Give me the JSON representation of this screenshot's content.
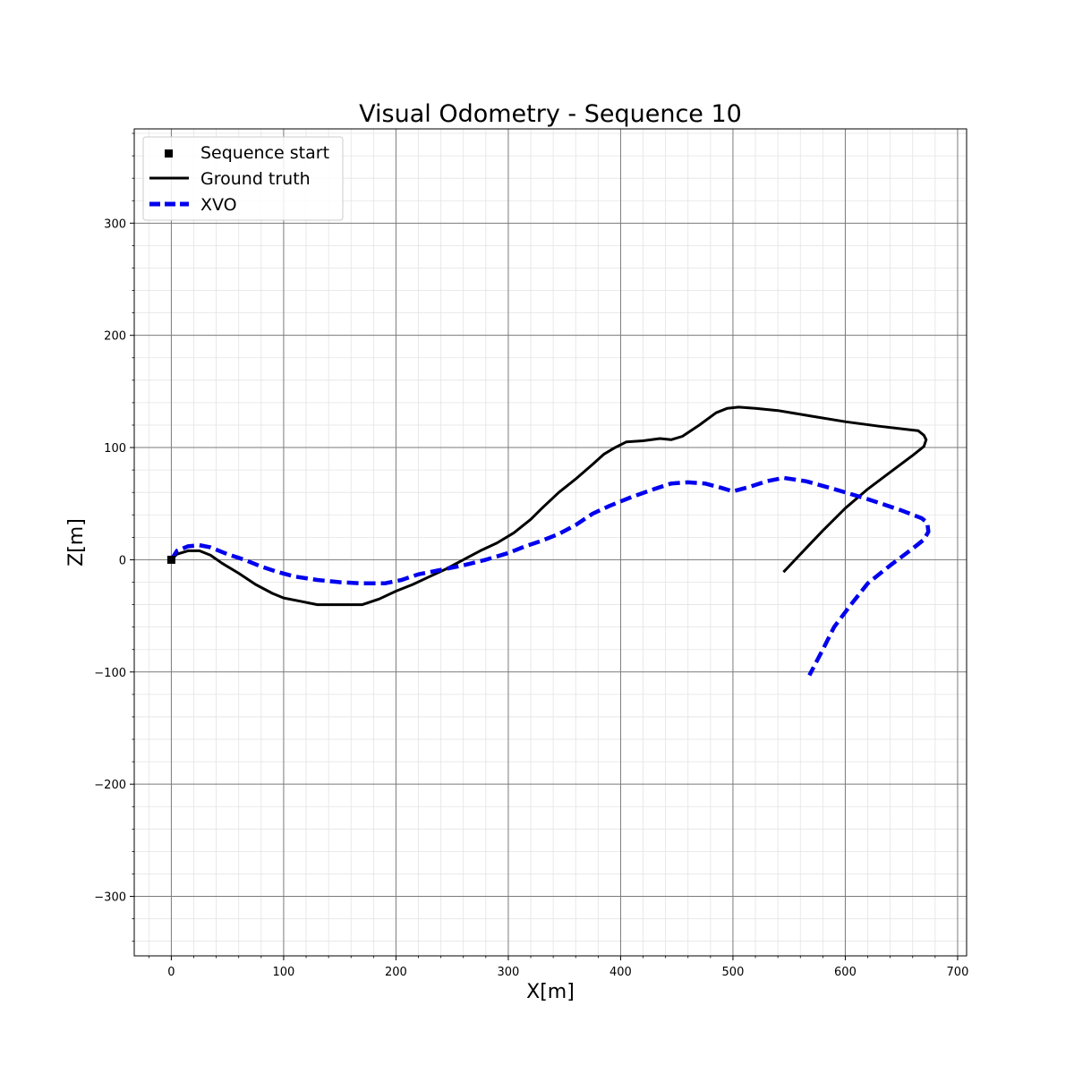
{
  "chart_data": {
    "type": "line",
    "title": "Visual Odometry - Sequence 10",
    "xlabel": "X[m]",
    "ylabel": "Z[m]",
    "xlim": [
      -33,
      708
    ],
    "ylim": [
      -353,
      384
    ],
    "xticks": [
      0,
      100,
      200,
      300,
      400,
      500,
      600,
      700
    ],
    "yticks": [
      -300,
      -200,
      -100,
      0,
      100,
      200,
      300
    ],
    "xtick_labels": [
      "0",
      "100",
      "200",
      "300",
      "400",
      "500",
      "600",
      "700"
    ],
    "ytick_labels": [
      "−300",
      "−200",
      "−100",
      "0",
      "100",
      "200",
      "300"
    ],
    "grid": true,
    "legend_position": "top-left",
    "start_point": {
      "name": "Sequence start",
      "x": 0,
      "y": 0,
      "color": "#000000"
    },
    "series": [
      {
        "name": "Ground truth",
        "color": "#000000",
        "style": "solid",
        "x": [
          0,
          5,
          15,
          25,
          35,
          45,
          60,
          75,
          90,
          100,
          115,
          130,
          150,
          170,
          185,
          200,
          215,
          230,
          245,
          260,
          275,
          290,
          305,
          320,
          330,
          345,
          360,
          375,
          385,
          395,
          405,
          420,
          435,
          445,
          455,
          470,
          485,
          495,
          505,
          520,
          540,
          570,
          600,
          630,
          665,
          670,
          672,
          670,
          660,
          640,
          620,
          600,
          580,
          560,
          545
        ],
        "y": [
          0,
          5,
          8,
          8,
          4,
          -3,
          -12,
          -22,
          -30,
          -34,
          -37,
          -40,
          -40,
          -40,
          -35,
          -28,
          -22,
          -15,
          -8,
          0,
          8,
          15,
          24,
          36,
          46,
          60,
          72,
          85,
          94,
          100,
          105,
          106,
          108,
          107,
          110,
          120,
          131,
          135,
          136,
          135,
          133,
          128,
          123,
          119,
          115,
          111,
          107,
          101,
          93,
          78,
          63,
          46,
          26,
          5,
          -11
        ]
      },
      {
        "name": "XVO",
        "color": "#0000ee",
        "style": "dashed",
        "x": [
          0,
          5,
          15,
          25,
          35,
          50,
          65,
          80,
          95,
          110,
          130,
          150,
          170,
          190,
          205,
          220,
          240,
          260,
          280,
          300,
          315,
          330,
          345,
          360,
          375,
          390,
          410,
          430,
          445,
          460,
          475,
          490,
          500,
          515,
          530,
          545,
          565,
          590,
          620,
          650,
          668,
          673,
          674,
          670,
          660,
          640,
          620,
          605,
          590,
          580,
          568
        ],
        "y": [
          0,
          8,
          12,
          13,
          11,
          5,
          0,
          -6,
          -11,
          -15,
          -18,
          -20,
          -21,
          -21,
          -18,
          -13,
          -9,
          -5,
          0,
          6,
          12,
          17,
          23,
          31,
          41,
          48,
          56,
          63,
          68,
          69,
          68,
          64,
          61,
          65,
          70,
          73,
          70,
          63,
          54,
          44,
          37,
          33,
          25,
          18,
          10,
          -5,
          -21,
          -40,
          -60,
          -80,
          -103
        ]
      }
    ]
  }
}
